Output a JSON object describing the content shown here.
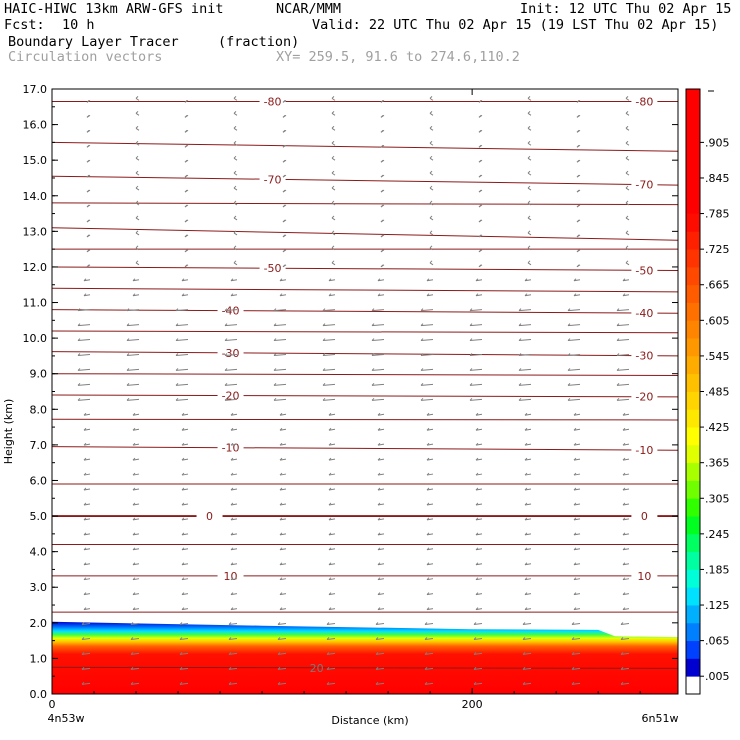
{
  "header": {
    "model": "HAIC-HIWC 13km ARW-GFS init",
    "org": "NCAR/MMM",
    "init": "Init: 12 UTC Thu 02 Apr 15",
    "fcst_label": "Fcst:",
    "fcst_value": "10 h",
    "valid": "Valid: 22 UTC Thu 02 Apr 15 (19 LST Thu 02 Apr 15)",
    "field": "Boundary Layer Tracer",
    "field_units": "(fraction)",
    "overlay": "Circulation vectors",
    "xy": "XY= 259.5, 91.6 to 274.6,110.2"
  },
  "chart_data": {
    "type": "heatmap",
    "xlabel": "Distance (km)",
    "ylabel": "Height (km)",
    "xlim": [
      0,
      298
    ],
    "ylim": [
      0,
      17
    ],
    "x_ticks": [
      0,
      200
    ],
    "x_tick_labels": [
      "0",
      "200"
    ],
    "x_end_labels": [
      "4n53w",
      "6n51w"
    ],
    "y_ticks": [
      0,
      1,
      2,
      3,
      4,
      5,
      6,
      7,
      8,
      9,
      10,
      11,
      12,
      13,
      14,
      15,
      16,
      17
    ],
    "y_tick_labels": [
      "0.0",
      "1.0",
      "2.0",
      "3.0",
      "4.0",
      "5.0",
      "6.0",
      "7.0",
      "8.0",
      "9.0",
      "10.0",
      "11.0",
      "12.0",
      "13.0",
      "14.0",
      "15.0",
      "16.0",
      "17.0"
    ],
    "colorbar": {
      "labels": [
        ".005",
        ".065",
        ".125",
        ".185",
        ".245",
        ".305",
        ".365",
        ".425",
        ".485",
        ".545",
        ".605",
        ".665",
        ".725",
        ".785",
        ".845",
        ".905"
      ],
      "levels": [
        0.005,
        0.035,
        0.065,
        0.095,
        0.125,
        0.155,
        0.185,
        0.215,
        0.245,
        0.275,
        0.305,
        0.335,
        0.365,
        0.395,
        0.425,
        0.455,
        0.485,
        0.515,
        0.545,
        0.575,
        0.605,
        0.635,
        0.665,
        0.695,
        0.725,
        0.755,
        0.785,
        0.815,
        0.845,
        0.875,
        0.905,
        0.935,
        0.965,
        0.995
      ],
      "colors": [
        "#ffffff",
        "#0000d0",
        "#0040ff",
        "#0080ff",
        "#00b0ff",
        "#00e0ff",
        "#00ffd8",
        "#00ffa0",
        "#00ff60",
        "#00ff20",
        "#30ff00",
        "#70ff00",
        "#a8ff00",
        "#e0ff00",
        "#ffff00",
        "#ffe800",
        "#ffd400",
        "#ffc000",
        "#ffac00",
        "#ff9800",
        "#ff8400",
        "#ff7000",
        "#ff5c00",
        "#ff4800",
        "#ff3400",
        "#ff2000",
        "#ff0c00",
        "#ff0000",
        "#ff0000",
        "#ff0000",
        "#ff0000",
        "#ff0000",
        "#ff0000",
        "#ff0000"
      ]
    },
    "boundary_layer_top_km": [
      {
        "x": 0,
        "top": 2.03
      },
      {
        "x": 100,
        "top": 1.92
      },
      {
        "x": 200,
        "top": 1.82
      },
      {
        "x": 260,
        "top": 1.8
      },
      {
        "x": 268,
        "top": 1.62
      },
      {
        "x": 298,
        "top": 1.6
      }
    ],
    "temperature_contours": [
      {
        "value": -80,
        "label": "-80",
        "y_left": 16.65,
        "y_right": 16.65,
        "labels_x": [
          105,
          282
        ]
      },
      {
        "value": -75,
        "label": "",
        "y_left": 15.5,
        "y_right": 15.25,
        "labels_x": []
      },
      {
        "value": -70,
        "label": "-70",
        "y_left": 14.55,
        "y_right": 14.3,
        "labels_x": [
          105,
          282
        ]
      },
      {
        "value": -65,
        "label": "",
        "y_left": 13.8,
        "y_right": 13.75,
        "labels_x": []
      },
      {
        "value": -60,
        "label": "",
        "y_left": 13.1,
        "y_right": 12.75,
        "labels_x": []
      },
      {
        "value": -55,
        "label": "",
        "y_left": 12.5,
        "y_right": 12.5,
        "labels_x": []
      },
      {
        "value": -50,
        "label": "-50",
        "y_left": 12.0,
        "y_right": 11.9,
        "labels_x": [
          105,
          282
        ]
      },
      {
        "value": -45,
        "label": "",
        "y_left": 11.4,
        "y_right": 11.3,
        "labels_x": []
      },
      {
        "value": -40,
        "label": "-40",
        "y_left": 10.8,
        "y_right": 10.7,
        "labels_x": [
          85,
          282
        ]
      },
      {
        "value": -35,
        "label": "",
        "y_left": 10.2,
        "y_right": 10.15,
        "labels_x": []
      },
      {
        "value": -30,
        "label": "-30",
        "y_left": 9.62,
        "y_right": 9.5,
        "labels_x": [
          85,
          282
        ]
      },
      {
        "value": -25,
        "label": "",
        "y_left": 9.0,
        "y_right": 8.95,
        "labels_x": []
      },
      {
        "value": -20,
        "label": "-20",
        "y_left": 8.4,
        "y_right": 8.35,
        "labels_x": [
          85,
          282
        ]
      },
      {
        "value": -15,
        "label": "",
        "y_left": 7.72,
        "y_right": 7.7,
        "labels_x": []
      },
      {
        "value": -10,
        "label": "-10",
        "y_left": 6.95,
        "y_right": 6.85,
        "labels_x": [
          85,
          282
        ]
      },
      {
        "value": -5,
        "label": "",
        "y_left": 5.9,
        "y_right": 5.9,
        "labels_x": []
      },
      {
        "value": 0,
        "label": "0",
        "y_left": 5.0,
        "y_right": 5.0,
        "labels_x": [
          75,
          282
        ]
      },
      {
        "value": 5,
        "label": "",
        "y_left": 4.2,
        "y_right": 4.2,
        "labels_x": []
      },
      {
        "value": 10,
        "label": "10",
        "y_left": 3.32,
        "y_right": 3.32,
        "labels_x": [
          85,
          282
        ]
      },
      {
        "value": 15,
        "label": "",
        "y_left": 2.3,
        "y_right": 2.3,
        "labels_x": []
      },
      {
        "value": 20,
        "label": "20",
        "y_left": 0.75,
        "y_right": 0.72,
        "labels_x": [
          126
        ]
      }
    ]
  }
}
